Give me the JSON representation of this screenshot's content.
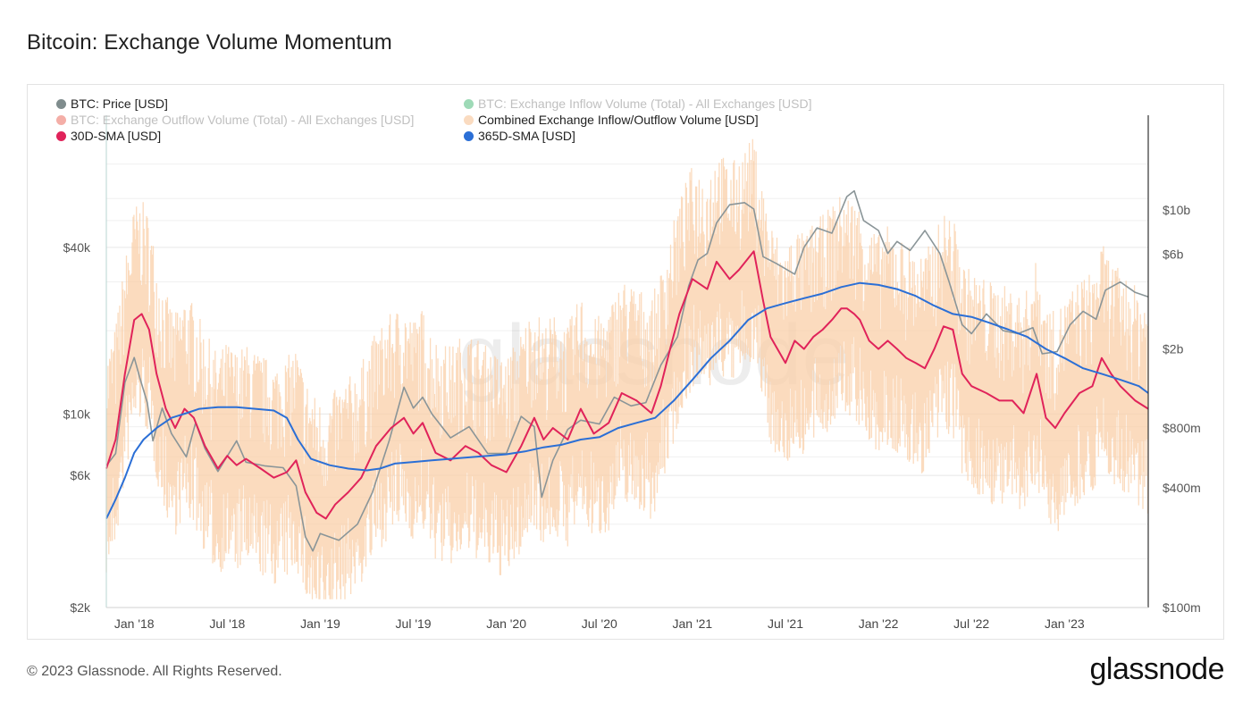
{
  "title": "Bitcoin: Exchange Volume Momentum",
  "footer": "© 2023 Glassnode. All Rights Reserved.",
  "brand": "glassnode",
  "watermark": "glassnode",
  "chart_data": {
    "type": "line",
    "title": "Bitcoin: Exchange Volume Momentum",
    "x_ticks": [
      "Jan '18",
      "Jul '18",
      "Jan '19",
      "Jul '19",
      "Jan '20",
      "Jul '20",
      "Jan '21",
      "Jul '21",
      "Jan '22",
      "Jul '22",
      "Jan '23"
    ],
    "x_range": [
      2017.85,
      2023.45
    ],
    "y_left": {
      "scale": "log",
      "range": [
        2000,
        120000
      ],
      "ticks": [
        {
          "label": "$2k",
          "value": 2000
        },
        {
          "label": "$6k",
          "value": 6000
        },
        {
          "label": "$10k",
          "value": 10000
        },
        {
          "label": "$40k",
          "value": 40000
        }
      ]
    },
    "y_right": {
      "scale": "log",
      "range": [
        100000000,
        30000000000
      ],
      "ticks": [
        {
          "label": "$100m",
          "value": 100000000
        },
        {
          "label": "$400m",
          "value": 400000000
        },
        {
          "label": "$800m",
          "value": 800000000
        },
        {
          "label": "$2b",
          "value": 2000000000
        },
        {
          "label": "$6b",
          "value": 6000000000
        },
        {
          "label": "$10b",
          "value": 10000000000
        }
      ]
    },
    "legend": [
      {
        "label": "BTC: Price [USD]",
        "color": "#7f8c8d",
        "active": true
      },
      {
        "label": "BTC: Exchange Inflow Volume (Total) - All Exchanges [USD]",
        "color": "#27ae60",
        "active": false
      },
      {
        "label": "BTC: Exchange Outflow Volume (Total) - All Exchanges [USD]",
        "color": "#e74c3c",
        "active": false
      },
      {
        "label": "Combined Exchange Inflow/Outflow Volume [USD]",
        "color": "#fadbc0",
        "active": true
      },
      {
        "label": "30D-SMA [USD]",
        "color": "#e0235a",
        "active": true
      },
      {
        "label": "365D-SMA [USD]",
        "color": "#2b6fd6",
        "active": true
      }
    ],
    "series": [
      {
        "name": "BTC: Price [USD]",
        "axis": "left",
        "color": "#8a9598",
        "points": [
          [
            2017.85,
            6500
          ],
          [
            2017.9,
            7200
          ],
          [
            2017.95,
            13000
          ],
          [
            2018.0,
            16000
          ],
          [
            2018.03,
            13500
          ],
          [
            2018.07,
            11000
          ],
          [
            2018.1,
            8000
          ],
          [
            2018.15,
            10500
          ],
          [
            2018.2,
            8500
          ],
          [
            2018.28,
            7000
          ],
          [
            2018.33,
            9300
          ],
          [
            2018.38,
            7500
          ],
          [
            2018.45,
            6200
          ],
          [
            2018.55,
            8000
          ],
          [
            2018.6,
            6700
          ],
          [
            2018.7,
            6500
          ],
          [
            2018.8,
            6400
          ],
          [
            2018.87,
            5500
          ],
          [
            2018.92,
            3600
          ],
          [
            2018.96,
            3200
          ],
          [
            2019.0,
            3700
          ],
          [
            2019.1,
            3500
          ],
          [
            2019.2,
            4000
          ],
          [
            2019.28,
            5200
          ],
          [
            2019.37,
            8000
          ],
          [
            2019.45,
            12500
          ],
          [
            2019.5,
            10500
          ],
          [
            2019.55,
            11500
          ],
          [
            2019.6,
            10000
          ],
          [
            2019.7,
            8200
          ],
          [
            2019.8,
            9000
          ],
          [
            2019.9,
            7200
          ],
          [
            2020.0,
            7200
          ],
          [
            2020.08,
            9800
          ],
          [
            2020.15,
            9000
          ],
          [
            2020.19,
            5000
          ],
          [
            2020.25,
            6800
          ],
          [
            2020.33,
            8800
          ],
          [
            2020.4,
            9500
          ],
          [
            2020.5,
            9200
          ],
          [
            2020.58,
            11500
          ],
          [
            2020.67,
            10700
          ],
          [
            2020.75,
            11000
          ],
          [
            2020.83,
            15000
          ],
          [
            2020.92,
            19000
          ],
          [
            2020.98,
            29000
          ],
          [
            2021.03,
            36000
          ],
          [
            2021.08,
            38000
          ],
          [
            2021.13,
            49000
          ],
          [
            2021.2,
            57000
          ],
          [
            2021.28,
            58000
          ],
          [
            2021.33,
            55000
          ],
          [
            2021.38,
            37000
          ],
          [
            2021.45,
            35000
          ],
          [
            2021.55,
            32000
          ],
          [
            2021.6,
            40000
          ],
          [
            2021.67,
            47000
          ],
          [
            2021.75,
            45000
          ],
          [
            2021.83,
            61000
          ],
          [
            2021.87,
            64000
          ],
          [
            2021.92,
            50000
          ],
          [
            2022.0,
            46000
          ],
          [
            2022.05,
            38000
          ],
          [
            2022.1,
            42000
          ],
          [
            2022.17,
            39000
          ],
          [
            2022.25,
            46000
          ],
          [
            2022.33,
            38000
          ],
          [
            2022.38,
            30000
          ],
          [
            2022.45,
            21000
          ],
          [
            2022.5,
            19500
          ],
          [
            2022.58,
            23000
          ],
          [
            2022.67,
            20000
          ],
          [
            2022.75,
            19500
          ],
          [
            2022.83,
            20500
          ],
          [
            2022.88,
            16500
          ],
          [
            2022.96,
            16800
          ],
          [
            2023.03,
            21000
          ],
          [
            2023.1,
            23500
          ],
          [
            2023.17,
            22000
          ],
          [
            2023.22,
            28000
          ],
          [
            2023.3,
            30000
          ],
          [
            2023.38,
            27500
          ],
          [
            2023.45,
            26500
          ]
        ]
      },
      {
        "name": "30D-SMA [USD]",
        "axis": "right",
        "color": "#e0235a",
        "points": [
          [
            2017.85,
            500000000
          ],
          [
            2017.9,
            700000000
          ],
          [
            2017.95,
            1500000000
          ],
          [
            2018.0,
            2800000000
          ],
          [
            2018.04,
            3000000000
          ],
          [
            2018.08,
            2500000000
          ],
          [
            2018.12,
            1500000000
          ],
          [
            2018.17,
            1000000000
          ],
          [
            2018.22,
            800000000
          ],
          [
            2018.27,
            1000000000
          ],
          [
            2018.32,
            900000000
          ],
          [
            2018.38,
            650000000
          ],
          [
            2018.45,
            500000000
          ],
          [
            2018.5,
            580000000
          ],
          [
            2018.55,
            520000000
          ],
          [
            2018.6,
            560000000
          ],
          [
            2018.68,
            500000000
          ],
          [
            2018.75,
            450000000
          ],
          [
            2018.82,
            480000000
          ],
          [
            2018.87,
            550000000
          ],
          [
            2018.92,
            380000000
          ],
          [
            2018.98,
            300000000
          ],
          [
            2019.03,
            280000000
          ],
          [
            2019.08,
            330000000
          ],
          [
            2019.15,
            380000000
          ],
          [
            2019.22,
            450000000
          ],
          [
            2019.3,
            650000000
          ],
          [
            2019.38,
            800000000
          ],
          [
            2019.45,
            900000000
          ],
          [
            2019.5,
            750000000
          ],
          [
            2019.55,
            850000000
          ],
          [
            2019.62,
            600000000
          ],
          [
            2019.7,
            550000000
          ],
          [
            2019.78,
            650000000
          ],
          [
            2019.85,
            600000000
          ],
          [
            2019.92,
            520000000
          ],
          [
            2020.0,
            480000000
          ],
          [
            2020.08,
            650000000
          ],
          [
            2020.15,
            900000000
          ],
          [
            2020.2,
            700000000
          ],
          [
            2020.25,
            800000000
          ],
          [
            2020.33,
            700000000
          ],
          [
            2020.4,
            1000000000
          ],
          [
            2020.47,
            750000000
          ],
          [
            2020.55,
            850000000
          ],
          [
            2020.62,
            1200000000
          ],
          [
            2020.7,
            1100000000
          ],
          [
            2020.78,
            950000000
          ],
          [
            2020.83,
            1300000000
          ],
          [
            2020.88,
            2000000000
          ],
          [
            2020.93,
            3000000000
          ],
          [
            2021.0,
            4500000000
          ],
          [
            2021.08,
            4000000000
          ],
          [
            2021.13,
            5500000000
          ],
          [
            2021.2,
            4500000000
          ],
          [
            2021.25,
            5000000000
          ],
          [
            2021.33,
            6200000000
          ],
          [
            2021.38,
            3500000000
          ],
          [
            2021.42,
            2300000000
          ],
          [
            2021.5,
            1700000000
          ],
          [
            2021.55,
            2200000000
          ],
          [
            2021.6,
            2000000000
          ],
          [
            2021.65,
            2300000000
          ],
          [
            2021.7,
            2500000000
          ],
          [
            2021.75,
            2800000000
          ],
          [
            2021.8,
            3200000000
          ],
          [
            2021.83,
            3200000000
          ],
          [
            2021.87,
            3000000000
          ],
          [
            2021.9,
            2800000000
          ],
          [
            2021.95,
            2200000000
          ],
          [
            2022.0,
            2000000000
          ],
          [
            2022.05,
            2200000000
          ],
          [
            2022.1,
            2000000000
          ],
          [
            2022.15,
            1800000000
          ],
          [
            2022.2,
            1700000000
          ],
          [
            2022.25,
            1600000000
          ],
          [
            2022.3,
            2000000000
          ],
          [
            2022.35,
            2600000000
          ],
          [
            2022.4,
            2500000000
          ],
          [
            2022.45,
            1500000000
          ],
          [
            2022.5,
            1300000000
          ],
          [
            2022.58,
            1200000000
          ],
          [
            2022.65,
            1100000000
          ],
          [
            2022.72,
            1100000000
          ],
          [
            2022.78,
            950000000
          ],
          [
            2022.85,
            1500000000
          ],
          [
            2022.9,
            900000000
          ],
          [
            2022.95,
            800000000
          ],
          [
            2023.0,
            950000000
          ],
          [
            2023.08,
            1200000000
          ],
          [
            2023.15,
            1300000000
          ],
          [
            2023.2,
            1800000000
          ],
          [
            2023.25,
            1500000000
          ],
          [
            2023.3,
            1300000000
          ],
          [
            2023.38,
            1100000000
          ],
          [
            2023.45,
            1000000000
          ]
        ]
      },
      {
        "name": "365D-SMA [USD]",
        "axis": "right",
        "color": "#2b6fd6",
        "points": [
          [
            2017.85,
            280000000
          ],
          [
            2017.9,
            350000000
          ],
          [
            2017.95,
            450000000
          ],
          [
            2018.0,
            600000000
          ],
          [
            2018.05,
            700000000
          ],
          [
            2018.12,
            800000000
          ],
          [
            2018.2,
            900000000
          ],
          [
            2018.28,
            950000000
          ],
          [
            2018.35,
            1000000000
          ],
          [
            2018.45,
            1020000000
          ],
          [
            2018.55,
            1020000000
          ],
          [
            2018.65,
            1000000000
          ],
          [
            2018.75,
            980000000
          ],
          [
            2018.82,
            900000000
          ],
          [
            2018.88,
            700000000
          ],
          [
            2018.95,
            560000000
          ],
          [
            2019.05,
            520000000
          ],
          [
            2019.15,
            500000000
          ],
          [
            2019.25,
            490000000
          ],
          [
            2019.32,
            500000000
          ],
          [
            2019.4,
            530000000
          ],
          [
            2019.5,
            540000000
          ],
          [
            2019.6,
            550000000
          ],
          [
            2019.7,
            560000000
          ],
          [
            2019.8,
            570000000
          ],
          [
            2019.9,
            580000000
          ],
          [
            2020.0,
            590000000
          ],
          [
            2020.1,
            610000000
          ],
          [
            2020.2,
            640000000
          ],
          [
            2020.3,
            660000000
          ],
          [
            2020.4,
            700000000
          ],
          [
            2020.5,
            720000000
          ],
          [
            2020.6,
            800000000
          ],
          [
            2020.7,
            850000000
          ],
          [
            2020.8,
            900000000
          ],
          [
            2020.9,
            1100000000
          ],
          [
            2021.0,
            1400000000
          ],
          [
            2021.1,
            1800000000
          ],
          [
            2021.2,
            2200000000
          ],
          [
            2021.3,
            2800000000
          ],
          [
            2021.4,
            3200000000
          ],
          [
            2021.5,
            3400000000
          ],
          [
            2021.6,
            3600000000
          ],
          [
            2021.7,
            3800000000
          ],
          [
            2021.8,
            4100000000
          ],
          [
            2021.9,
            4300000000
          ],
          [
            2022.0,
            4200000000
          ],
          [
            2022.1,
            4000000000
          ],
          [
            2022.2,
            3700000000
          ],
          [
            2022.3,
            3300000000
          ],
          [
            2022.4,
            3000000000
          ],
          [
            2022.5,
            2900000000
          ],
          [
            2022.6,
            2700000000
          ],
          [
            2022.7,
            2500000000
          ],
          [
            2022.8,
            2300000000
          ],
          [
            2022.9,
            2000000000
          ],
          [
            2023.0,
            1800000000
          ],
          [
            2023.1,
            1600000000
          ],
          [
            2023.2,
            1500000000
          ],
          [
            2023.3,
            1400000000
          ],
          [
            2023.4,
            1300000000
          ],
          [
            2023.45,
            1200000000
          ]
        ]
      }
    ]
  }
}
